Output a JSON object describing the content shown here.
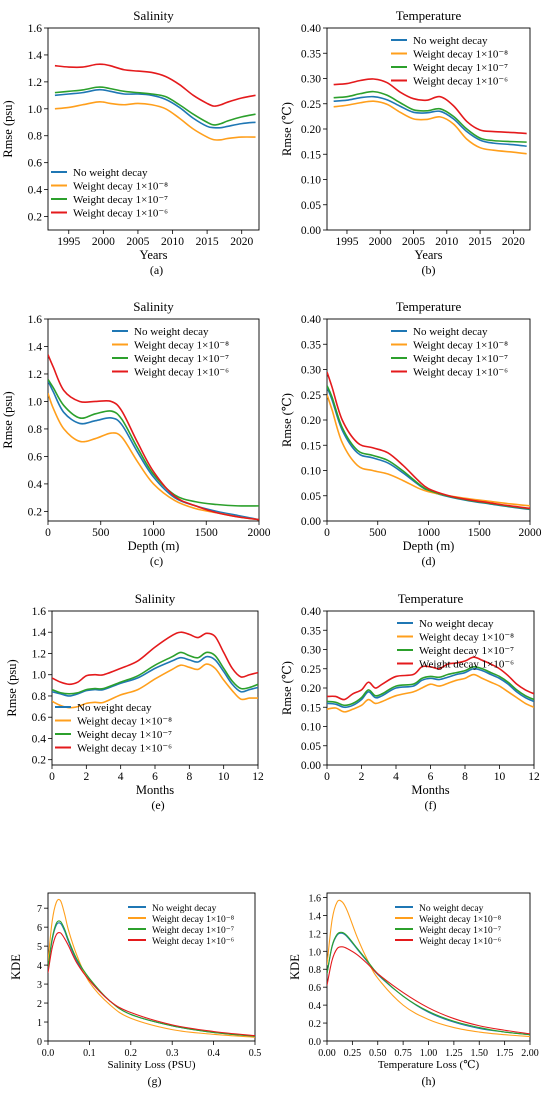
{
  "colors": {
    "no_decay": "#1f77b4",
    "wd_1e8": "#ff9f1c",
    "wd_1e7": "#2ca02c",
    "wd_1e6": "#e41a1c"
  },
  "legend_labels": [
    "No weight decay",
    "Weight decay 1×10⁻⁸",
    "Weight decay 1×10⁻⁷",
    "Weight decay 1×10⁻⁶"
  ],
  "chart_data": [
    {
      "id": "a",
      "type": "line",
      "title": "Salinity",
      "caption": "(a)",
      "xlabel": "Years",
      "ylabel": "Rmse (psu)",
      "xlim": [
        1992,
        2022.5
      ],
      "ylim": [
        0.1,
        1.6
      ],
      "xticks": [
        1995,
        2000,
        2005,
        2010,
        2015,
        2020
      ],
      "yticks": [
        0.2,
        0.4,
        0.6,
        0.8,
        1.0,
        1.2,
        1.4,
        1.6
      ],
      "legend": "lower-left",
      "x": [
        1993,
        1995,
        1997,
        1999,
        2000,
        2001,
        2003,
        2005,
        2007,
        2009,
        2011,
        2013,
        2015,
        2016,
        2017,
        2018,
        2020,
        2022
      ],
      "series": [
        {
          "name": "No weight decay",
          "values": [
            1.1,
            1.11,
            1.12,
            1.14,
            1.14,
            1.13,
            1.11,
            1.11,
            1.1,
            1.07,
            1.01,
            0.93,
            0.87,
            0.86,
            0.86,
            0.87,
            0.89,
            0.9
          ]
        },
        {
          "name": "Weight decay 1×10⁻⁸",
          "values": [
            1.0,
            1.01,
            1.03,
            1.05,
            1.05,
            1.04,
            1.03,
            1.04,
            1.03,
            1.0,
            0.93,
            0.85,
            0.79,
            0.77,
            0.77,
            0.78,
            0.79,
            0.79
          ]
        },
        {
          "name": "Weight decay 1×10⁻⁷",
          "values": [
            1.12,
            1.13,
            1.14,
            1.16,
            1.16,
            1.15,
            1.13,
            1.12,
            1.11,
            1.09,
            1.03,
            0.96,
            0.9,
            0.88,
            0.89,
            0.91,
            0.94,
            0.96
          ]
        },
        {
          "name": "Weight decay 1×10⁻⁶",
          "values": [
            1.32,
            1.31,
            1.31,
            1.33,
            1.33,
            1.32,
            1.29,
            1.28,
            1.27,
            1.24,
            1.18,
            1.1,
            1.04,
            1.02,
            1.03,
            1.05,
            1.08,
            1.1
          ]
        }
      ]
    },
    {
      "id": "b",
      "type": "line",
      "title": "Temperature",
      "caption": "(b)",
      "xlabel": "Years",
      "ylabel": "Rmse (℃)",
      "xlim": [
        1992,
        2022.5
      ],
      "ylim": [
        0.0,
        0.4
      ],
      "xticks": [
        1995,
        2000,
        2005,
        2010,
        2015,
        2020
      ],
      "yticks": [
        0.0,
        0.05,
        0.1,
        0.15,
        0.2,
        0.25,
        0.3,
        0.35,
        0.4
      ],
      "legend": "top-right",
      "x": [
        1993,
        1995,
        1997,
        1999,
        2001,
        2003,
        2005,
        2007,
        2009,
        2011,
        2013,
        2015,
        2017,
        2020,
        2022
      ],
      "series": [
        {
          "name": "No weight decay",
          "values": [
            0.255,
            0.257,
            0.262,
            0.264,
            0.258,
            0.245,
            0.233,
            0.232,
            0.235,
            0.22,
            0.195,
            0.178,
            0.172,
            0.169,
            0.166
          ]
        },
        {
          "name": "Weight decay 1×10⁻⁸",
          "values": [
            0.244,
            0.247,
            0.252,
            0.255,
            0.249,
            0.233,
            0.22,
            0.219,
            0.224,
            0.21,
            0.18,
            0.163,
            0.158,
            0.154,
            0.151
          ]
        },
        {
          "name": "Weight decay 1×10⁻⁷",
          "values": [
            0.262,
            0.264,
            0.27,
            0.274,
            0.267,
            0.252,
            0.238,
            0.236,
            0.24,
            0.225,
            0.2,
            0.182,
            0.177,
            0.175,
            0.174
          ]
        },
        {
          "name": "Weight decay 1×10⁻⁶",
          "values": [
            0.288,
            0.29,
            0.296,
            0.299,
            0.292,
            0.273,
            0.26,
            0.257,
            0.264,
            0.246,
            0.215,
            0.198,
            0.195,
            0.193,
            0.191
          ]
        }
      ]
    },
    {
      "id": "c",
      "type": "line",
      "title": "Salinity",
      "caption": "(c)",
      "xlabel": "Depth (m)",
      "ylabel": "Rmse (psu)",
      "xlim": [
        0,
        2000
      ],
      "ylim": [
        0.13,
        1.6
      ],
      "xticks": [
        0,
        500,
        1000,
        1500,
        2000
      ],
      "yticks": [
        0.2,
        0.4,
        0.6,
        0.8,
        1.0,
        1.2,
        1.4,
        1.6
      ],
      "legend": "top-right",
      "x": [
        0,
        50,
        150,
        300,
        450,
        600,
        700,
        850,
        1000,
        1200,
        1400,
        1600,
        1800,
        2000
      ],
      "series": [
        {
          "name": "No weight decay",
          "values": [
            1.15,
            1.07,
            0.92,
            0.84,
            0.86,
            0.88,
            0.83,
            0.63,
            0.45,
            0.3,
            0.24,
            0.2,
            0.17,
            0.14
          ]
        },
        {
          "name": "Weight decay 1×10⁻⁸",
          "values": [
            1.06,
            0.95,
            0.8,
            0.71,
            0.73,
            0.77,
            0.74,
            0.56,
            0.4,
            0.28,
            0.22,
            0.19,
            0.16,
            0.14
          ]
        },
        {
          "name": "Weight decay 1×10⁻⁷",
          "values": [
            1.16,
            1.1,
            0.97,
            0.88,
            0.91,
            0.93,
            0.87,
            0.66,
            0.47,
            0.32,
            0.27,
            0.25,
            0.24,
            0.24
          ]
        },
        {
          "name": "Weight decay 1×10⁻⁶",
          "values": [
            1.34,
            1.25,
            1.08,
            1.0,
            1.0,
            1.0,
            0.93,
            0.7,
            0.49,
            0.31,
            0.24,
            0.19,
            0.16,
            0.14
          ]
        }
      ]
    },
    {
      "id": "d",
      "type": "line",
      "title": "Temperature",
      "caption": "(d)",
      "xlabel": "Depth (m)",
      "ylabel": "Rmse (℃)",
      "xlim": [
        0,
        2000
      ],
      "ylim": [
        0.0,
        0.4
      ],
      "xticks": [
        0,
        500,
        1000,
        1500,
        2000
      ],
      "yticks": [
        0.0,
        0.05,
        0.1,
        0.15,
        0.2,
        0.25,
        0.3,
        0.35,
        0.4
      ],
      "legend": "top-right",
      "x": [
        0,
        50,
        150,
        300,
        450,
        600,
        750,
        900,
        1000,
        1200,
        1400,
        1600,
        1800,
        2000
      ],
      "series": [
        {
          "name": "No weight decay",
          "values": [
            0.265,
            0.24,
            0.18,
            0.135,
            0.125,
            0.115,
            0.095,
            0.072,
            0.06,
            0.048,
            0.04,
            0.034,
            0.028,
            0.023
          ]
        },
        {
          "name": "Weight decay 1×10⁻⁸",
          "values": [
            0.25,
            0.22,
            0.155,
            0.11,
            0.1,
            0.093,
            0.08,
            0.065,
            0.058,
            0.05,
            0.044,
            0.039,
            0.034,
            0.03
          ]
        },
        {
          "name": "Weight decay 1×10⁻⁷",
          "values": [
            0.268,
            0.245,
            0.185,
            0.14,
            0.13,
            0.12,
            0.099,
            0.074,
            0.061,
            0.049,
            0.041,
            0.035,
            0.029,
            0.024
          ]
        },
        {
          "name": "Weight decay 1×10⁻⁶",
          "values": [
            0.295,
            0.265,
            0.2,
            0.155,
            0.145,
            0.135,
            0.11,
            0.08,
            0.064,
            0.05,
            0.042,
            0.036,
            0.03,
            0.025
          ]
        }
      ]
    },
    {
      "id": "e",
      "type": "line",
      "title": "Salinity",
      "caption": "(e)",
      "xlabel": "Months",
      "ylabel": "Rmse (psu)",
      "xlim": [
        0,
        12
      ],
      "ylim": [
        0.15,
        1.6
      ],
      "xticks": [
        0,
        2,
        4,
        6,
        8,
        10,
        12
      ],
      "yticks": [
        0.2,
        0.4,
        0.6,
        0.8,
        1.0,
        1.2,
        1.4,
        1.6
      ],
      "legend": "lower-left",
      "x": [
        0,
        0.5,
        1,
        1.5,
        2,
        2.5,
        3,
        4,
        5,
        6,
        7,
        7.5,
        8,
        8.5,
        9,
        9.5,
        10,
        10.5,
        11,
        11.5,
        12
      ],
      "series": [
        {
          "name": "No weight decay",
          "values": [
            0.84,
            0.82,
            0.8,
            0.82,
            0.85,
            0.86,
            0.86,
            0.92,
            0.97,
            1.06,
            1.13,
            1.16,
            1.14,
            1.12,
            1.17,
            1.14,
            1.03,
            0.91,
            0.84,
            0.86,
            0.88
          ]
        },
        {
          "name": "Weight decay 1×10⁻⁸",
          "values": [
            0.75,
            0.71,
            0.69,
            0.7,
            0.73,
            0.74,
            0.74,
            0.81,
            0.86,
            0.96,
            1.05,
            1.09,
            1.07,
            1.05,
            1.1,
            1.06,
            0.95,
            0.85,
            0.77,
            0.78,
            0.78
          ]
        },
        {
          "name": "Weight decay 1×10⁻⁷",
          "values": [
            0.86,
            0.83,
            0.82,
            0.83,
            0.86,
            0.87,
            0.87,
            0.93,
            0.99,
            1.09,
            1.17,
            1.21,
            1.18,
            1.16,
            1.21,
            1.18,
            1.06,
            0.94,
            0.87,
            0.88,
            0.91
          ]
        },
        {
          "name": "Weight decay 1×10⁻⁶",
          "values": [
            0.97,
            0.93,
            0.91,
            0.93,
            0.99,
            1.0,
            1.0,
            1.06,
            1.13,
            1.26,
            1.37,
            1.4,
            1.38,
            1.35,
            1.39,
            1.36,
            1.21,
            1.06,
            0.98,
            1.0,
            1.02
          ]
        }
      ]
    },
    {
      "id": "f",
      "type": "line",
      "title": "Temperature",
      "caption": "(f)",
      "xlabel": "Months",
      "ylabel": "Rmse (℃)",
      "xlim": [
        0,
        12
      ],
      "ylim": [
        0.0,
        0.4
      ],
      "xticks": [
        0,
        2,
        4,
        6,
        8,
        10,
        12
      ],
      "yticks": [
        0.0,
        0.05,
        0.1,
        0.15,
        0.2,
        0.25,
        0.3,
        0.35,
        0.4
      ],
      "legend": "top-right",
      "x": [
        0,
        0.5,
        1,
        1.5,
        2,
        2.4,
        2.8,
        3.2,
        4,
        5,
        5.5,
        6,
        6.5,
        7,
        7.5,
        8,
        8.5,
        9,
        9.5,
        10,
        10.5,
        11,
        11.5,
        12
      ],
      "series": [
        {
          "name": "No weight decay",
          "values": [
            0.16,
            0.158,
            0.15,
            0.155,
            0.17,
            0.19,
            0.175,
            0.18,
            0.2,
            0.205,
            0.22,
            0.225,
            0.222,
            0.228,
            0.235,
            0.24,
            0.25,
            0.245,
            0.235,
            0.225,
            0.21,
            0.19,
            0.175,
            0.165
          ]
        },
        {
          "name": "Weight decay 1×10⁻⁸",
          "values": [
            0.145,
            0.148,
            0.138,
            0.145,
            0.155,
            0.17,
            0.16,
            0.165,
            0.18,
            0.19,
            0.2,
            0.21,
            0.205,
            0.212,
            0.22,
            0.225,
            0.235,
            0.225,
            0.215,
            0.205,
            0.19,
            0.175,
            0.16,
            0.15
          ]
        },
        {
          "name": "Weight decay 1×10⁻⁷",
          "values": [
            0.165,
            0.163,
            0.155,
            0.16,
            0.175,
            0.195,
            0.18,
            0.185,
            0.205,
            0.21,
            0.225,
            0.23,
            0.228,
            0.235,
            0.24,
            0.245,
            0.255,
            0.25,
            0.24,
            0.23,
            0.215,
            0.195,
            0.18,
            0.17
          ]
        },
        {
          "name": "Weight decay 1×10⁻⁶",
          "values": [
            0.178,
            0.178,
            0.17,
            0.185,
            0.195,
            0.215,
            0.2,
            0.21,
            0.23,
            0.235,
            0.255,
            0.255,
            0.25,
            0.262,
            0.265,
            0.27,
            0.28,
            0.272,
            0.262,
            0.25,
            0.232,
            0.21,
            0.195,
            0.185
          ]
        }
      ]
    },
    {
      "id": "g",
      "type": "line",
      "title": "",
      "caption": "(g)",
      "xlabel": "Salinity Loss (PSU)",
      "ylabel": "KDE",
      "xlim": [
        0,
        0.5
      ],
      "ylim": [
        0,
        7.8
      ],
      "xticks": [
        0.0,
        0.1,
        0.2,
        0.3,
        0.4,
        0.5
      ],
      "yticks": [
        0,
        1,
        2,
        3,
        4,
        5,
        6,
        7
      ],
      "legend": "top-right",
      "x": [
        0,
        0.01,
        0.02,
        0.03,
        0.04,
        0.05,
        0.07,
        0.1,
        0.15,
        0.2,
        0.3,
        0.4,
        0.5
      ],
      "series": [
        {
          "name": "No weight decay",
          "values": [
            3.8,
            5.3,
            6.1,
            6.2,
            5.8,
            5.2,
            4.2,
            3.2,
            2.1,
            1.4,
            0.8,
            0.45,
            0.25
          ]
        },
        {
          "name": "Weight decay 1×10⁻⁸",
          "values": [
            4.2,
            6.3,
            7.3,
            7.4,
            6.7,
            5.8,
            4.5,
            3.1,
            1.9,
            1.2,
            0.6,
            0.35,
            0.2
          ]
        },
        {
          "name": "Weight decay 1×10⁻⁷",
          "values": [
            3.9,
            5.4,
            6.2,
            6.3,
            5.9,
            5.3,
            4.3,
            3.3,
            2.1,
            1.4,
            0.8,
            0.45,
            0.25
          ]
        },
        {
          "name": "Weight decay 1×10⁻⁶",
          "values": [
            3.6,
            4.9,
            5.6,
            5.7,
            5.4,
            5.0,
            4.1,
            3.2,
            2.1,
            1.5,
            0.85,
            0.5,
            0.28
          ]
        }
      ]
    },
    {
      "id": "h",
      "type": "line",
      "title": "",
      "caption": "(h)",
      "xlabel": "Temperature Loss (℃)",
      "ylabel": "KDE",
      "xlim": [
        0,
        2.0
      ],
      "ylim": [
        0,
        1.65
      ],
      "xticks": [
        0.0,
        0.25,
        0.5,
        0.75,
        1.0,
        1.25,
        1.5,
        1.75,
        2.0
      ],
      "yticks": [
        0.0,
        0.2,
        0.4,
        0.6,
        0.8,
        1.0,
        1.2,
        1.4,
        1.6
      ],
      "legend": "top-right",
      "x": [
        0,
        0.05,
        0.1,
        0.15,
        0.2,
        0.3,
        0.4,
        0.5,
        0.75,
        1.0,
        1.25,
        1.5,
        1.75,
        2.0
      ],
      "series": [
        {
          "name": "No weight decay",
          "values": [
            0.75,
            1.05,
            1.18,
            1.2,
            1.16,
            1.02,
            0.88,
            0.74,
            0.5,
            0.32,
            0.21,
            0.14,
            0.1,
            0.07
          ]
        },
        {
          "name": "Weight decay 1×10⁻⁸",
          "values": [
            0.85,
            1.35,
            1.55,
            1.55,
            1.45,
            1.15,
            0.9,
            0.7,
            0.4,
            0.24,
            0.15,
            0.1,
            0.07,
            0.05
          ]
        },
        {
          "name": "Weight decay 1×10⁻⁷",
          "values": [
            0.75,
            1.06,
            1.19,
            1.21,
            1.17,
            1.03,
            0.89,
            0.75,
            0.5,
            0.33,
            0.22,
            0.15,
            0.1,
            0.07
          ]
        },
        {
          "name": "Weight decay 1×10⁻⁶",
          "values": [
            0.62,
            0.9,
            1.03,
            1.05,
            1.03,
            0.96,
            0.86,
            0.75,
            0.54,
            0.37,
            0.25,
            0.17,
            0.12,
            0.08
          ]
        }
      ]
    }
  ]
}
